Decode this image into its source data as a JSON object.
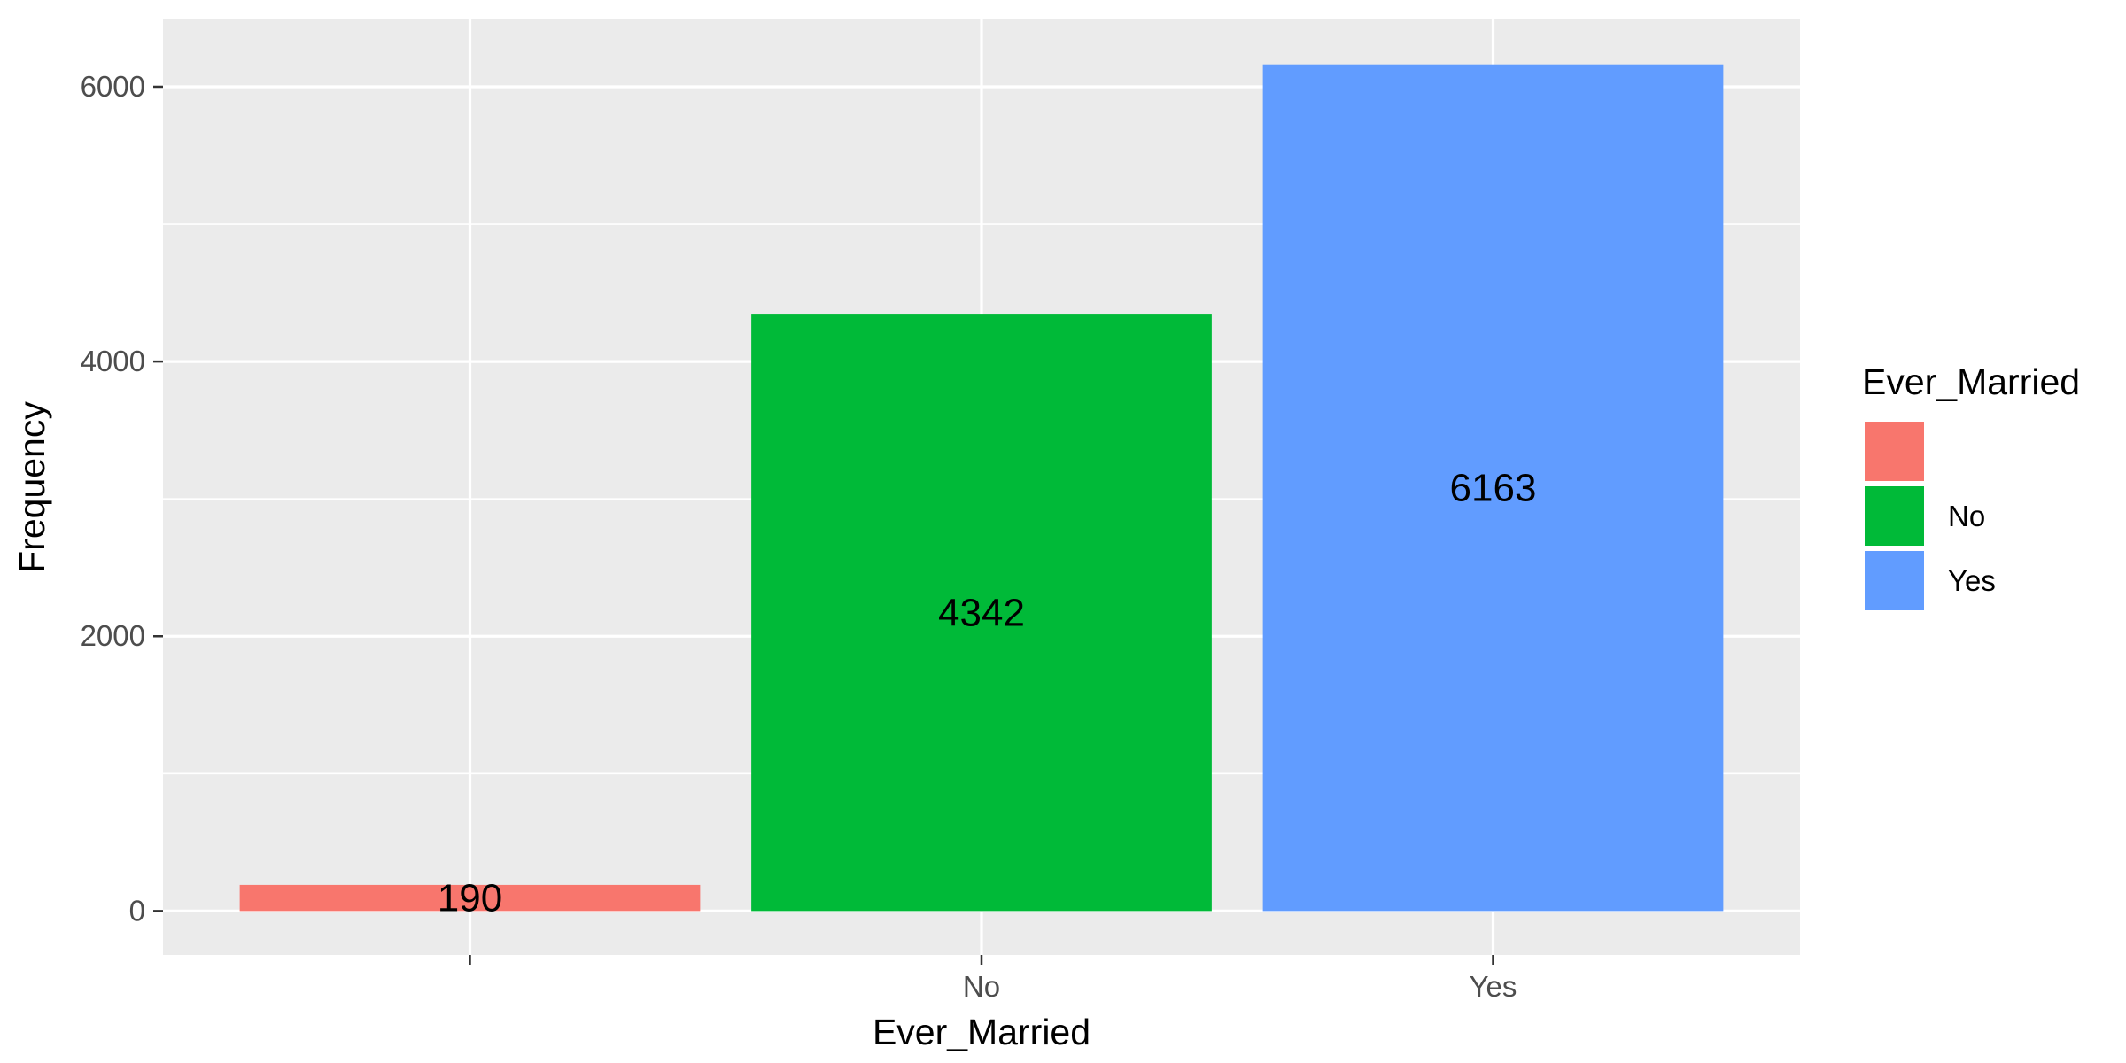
{
  "chart_data": {
    "type": "bar",
    "categories": [
      "",
      "No",
      "Yes"
    ],
    "values": [
      190,
      4342,
      6163
    ],
    "colors": [
      "#F8766D",
      "#00BA38",
      "#619CFF"
    ],
    "xlabel": "Ever_Married",
    "ylabel": "Frequency",
    "ylim": [
      -320,
      6490
    ],
    "yticks": [
      0,
      2000,
      4000,
      6000
    ],
    "ytick_labels": [
      "0",
      "2000",
      "4000",
      "6000"
    ],
    "grid": true,
    "background": "#EBEBEB",
    "legend": {
      "title": "Ever_Married",
      "position": "right",
      "entries": [
        "",
        "No",
        "Yes"
      ]
    },
    "data_labels": [
      "190",
      "4342",
      "6163"
    ]
  }
}
